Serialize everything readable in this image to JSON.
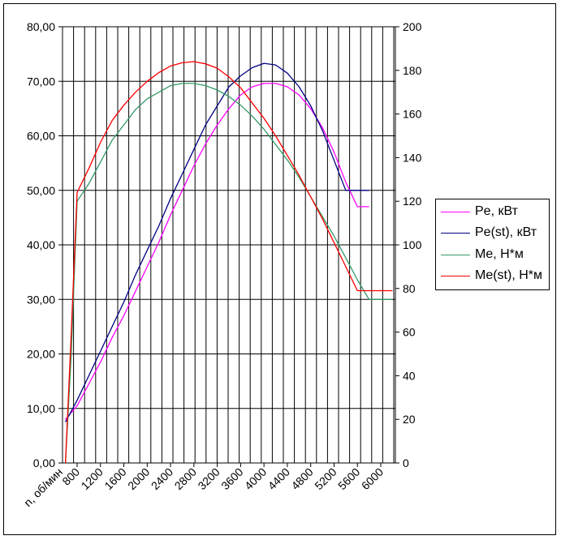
{
  "chart_data": {
    "type": "line",
    "xlabel": "n, об/мин",
    "x_ticks": [
      "800",
      "1200",
      "1600",
      "2000",
      "2400",
      "2800",
      "3200",
      "3600",
      "4000",
      "4400",
      "4800",
      "5200",
      "5600",
      "6000"
    ],
    "y_left": {
      "ticks": [
        "0,00",
        "10,00",
        "20,00",
        "30,00",
        "40,00",
        "50,00",
        "60,00",
        "70,00",
        "80,00"
      ],
      "range": [
        0,
        80
      ]
    },
    "y_right": {
      "ticks": [
        "0",
        "20",
        "40",
        "60",
        "80",
        "100",
        "120",
        "140",
        "160",
        "180",
        "200"
      ],
      "range": [
        0,
        200
      ]
    },
    "xlim": [
      550,
      6250
    ],
    "grid": "horizontal and vertical",
    "legend_position": "right",
    "series": [
      {
        "name": "Pe, кВт",
        "color": "#ff00ff",
        "axis": "left",
        "x": [
          600,
          800,
          1000,
          1200,
          1400,
          1600,
          1800,
          2000,
          2200,
          2400,
          2600,
          2800,
          3000,
          3200,
          3400,
          3600,
          3800,
          4000,
          4200,
          4400,
          4600,
          4800,
          5000,
          5200,
          5400,
          5600,
          5800
        ],
        "y": [
          8.0,
          10.5,
          14.5,
          18.5,
          23.0,
          27.0,
          31.5,
          36.0,
          40.5,
          45.5,
          50.0,
          54.5,
          58.5,
          62.0,
          65.0,
          67.5,
          69.0,
          69.6,
          69.6,
          69.0,
          67.5,
          65.0,
          61.5,
          57.0,
          51.5,
          47.0,
          47.0
        ]
      },
      {
        "name": "Pe(st), кВт",
        "color": "#000080",
        "axis": "left",
        "x": [
          600,
          800,
          1000,
          1200,
          1400,
          1600,
          1800,
          2000,
          2200,
          2400,
          2600,
          2800,
          3000,
          3200,
          3400,
          3600,
          3800,
          4000,
          4200,
          4400,
          4600,
          4800,
          5000,
          5200,
          5400,
          5600,
          5800
        ],
        "y": [
          7.5,
          11.5,
          16.0,
          20.5,
          25.0,
          29.5,
          34.5,
          39.0,
          43.5,
          48.5,
          53.0,
          57.5,
          62.0,
          65.5,
          69.0,
          71.0,
          72.5,
          73.3,
          73.0,
          71.5,
          69.0,
          65.5,
          61.0,
          55.5,
          50.0,
          50.0,
          50.0
        ]
      },
      {
        "name": "Me, Н*м",
        "color": "#339966",
        "axis": "right",
        "x": [
          600,
          700,
          800,
          1000,
          1200,
          1400,
          1600,
          1800,
          2000,
          2200,
          2400,
          2600,
          2800,
          3000,
          3200,
          3400,
          3600,
          3800,
          4000,
          4200,
          4400,
          4600,
          4800,
          5000,
          5200,
          5400,
          5600,
          5800,
          6000,
          6200
        ],
        "y": [
          0,
          50,
          120,
          128,
          138,
          148,
          155,
          162,
          167,
          170,
          173,
          174,
          174,
          173,
          171,
          168,
          164,
          159,
          153,
          146,
          139,
          131,
          122,
          113,
          104,
          94,
          84,
          75,
          75,
          75
        ]
      },
      {
        "name": "Me(st), Н*м",
        "color": "#ff0000",
        "axis": "right",
        "x": [
          600,
          700,
          800,
          1000,
          1200,
          1400,
          1600,
          1800,
          2000,
          2200,
          2400,
          2600,
          2800,
          3000,
          3200,
          3400,
          3600,
          3800,
          4000,
          4200,
          4400,
          4600,
          4800,
          5000,
          5200,
          5400,
          5600,
          5800,
          6000,
          6200
        ],
        "y": [
          0,
          60,
          124,
          135,
          147,
          157,
          164,
          170,
          175,
          179,
          182,
          183.5,
          184,
          183,
          181,
          177,
          172,
          165,
          158,
          150,
          141,
          132,
          122,
          112,
          101,
          90,
          79,
          79,
          79,
          79
        ]
      }
    ]
  }
}
